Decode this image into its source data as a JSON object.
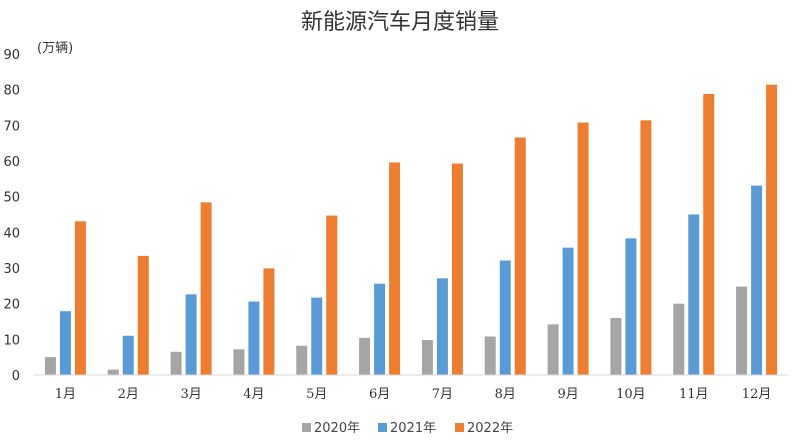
{
  "chart_data": {
    "type": "bar",
    "title": "新能源汽车月度销量",
    "unit_label": "(万辆)",
    "ylim": [
      0,
      90
    ],
    "yticks": [
      0,
      10,
      20,
      30,
      40,
      50,
      60,
      70,
      80,
      90
    ],
    "grid": false,
    "legend_position": "bottom",
    "categories": [
      "1月",
      "2月",
      "3月",
      "4月",
      "5月",
      "6月",
      "7月",
      "8月",
      "9月",
      "10月",
      "11月",
      "12月"
    ],
    "series": [
      {
        "name": "2020年",
        "color": "#a5a5a5",
        "values": [
          5.0,
          1.5,
          6.5,
          7.2,
          8.2,
          10.4,
          9.8,
          10.8,
          14.2,
          16.0,
          20.0,
          24.8
        ]
      },
      {
        "name": "2021年",
        "color": "#5b9bd5",
        "values": [
          17.9,
          11.0,
          22.6,
          20.6,
          21.7,
          25.6,
          27.1,
          32.1,
          35.7,
          38.3,
          45.0,
          53.1
        ]
      },
      {
        "name": "2022年",
        "color": "#ed7d31",
        "values": [
          43.1,
          33.4,
          48.4,
          29.9,
          44.7,
          59.6,
          59.3,
          66.6,
          70.8,
          71.4,
          78.8,
          81.4
        ]
      }
    ]
  }
}
